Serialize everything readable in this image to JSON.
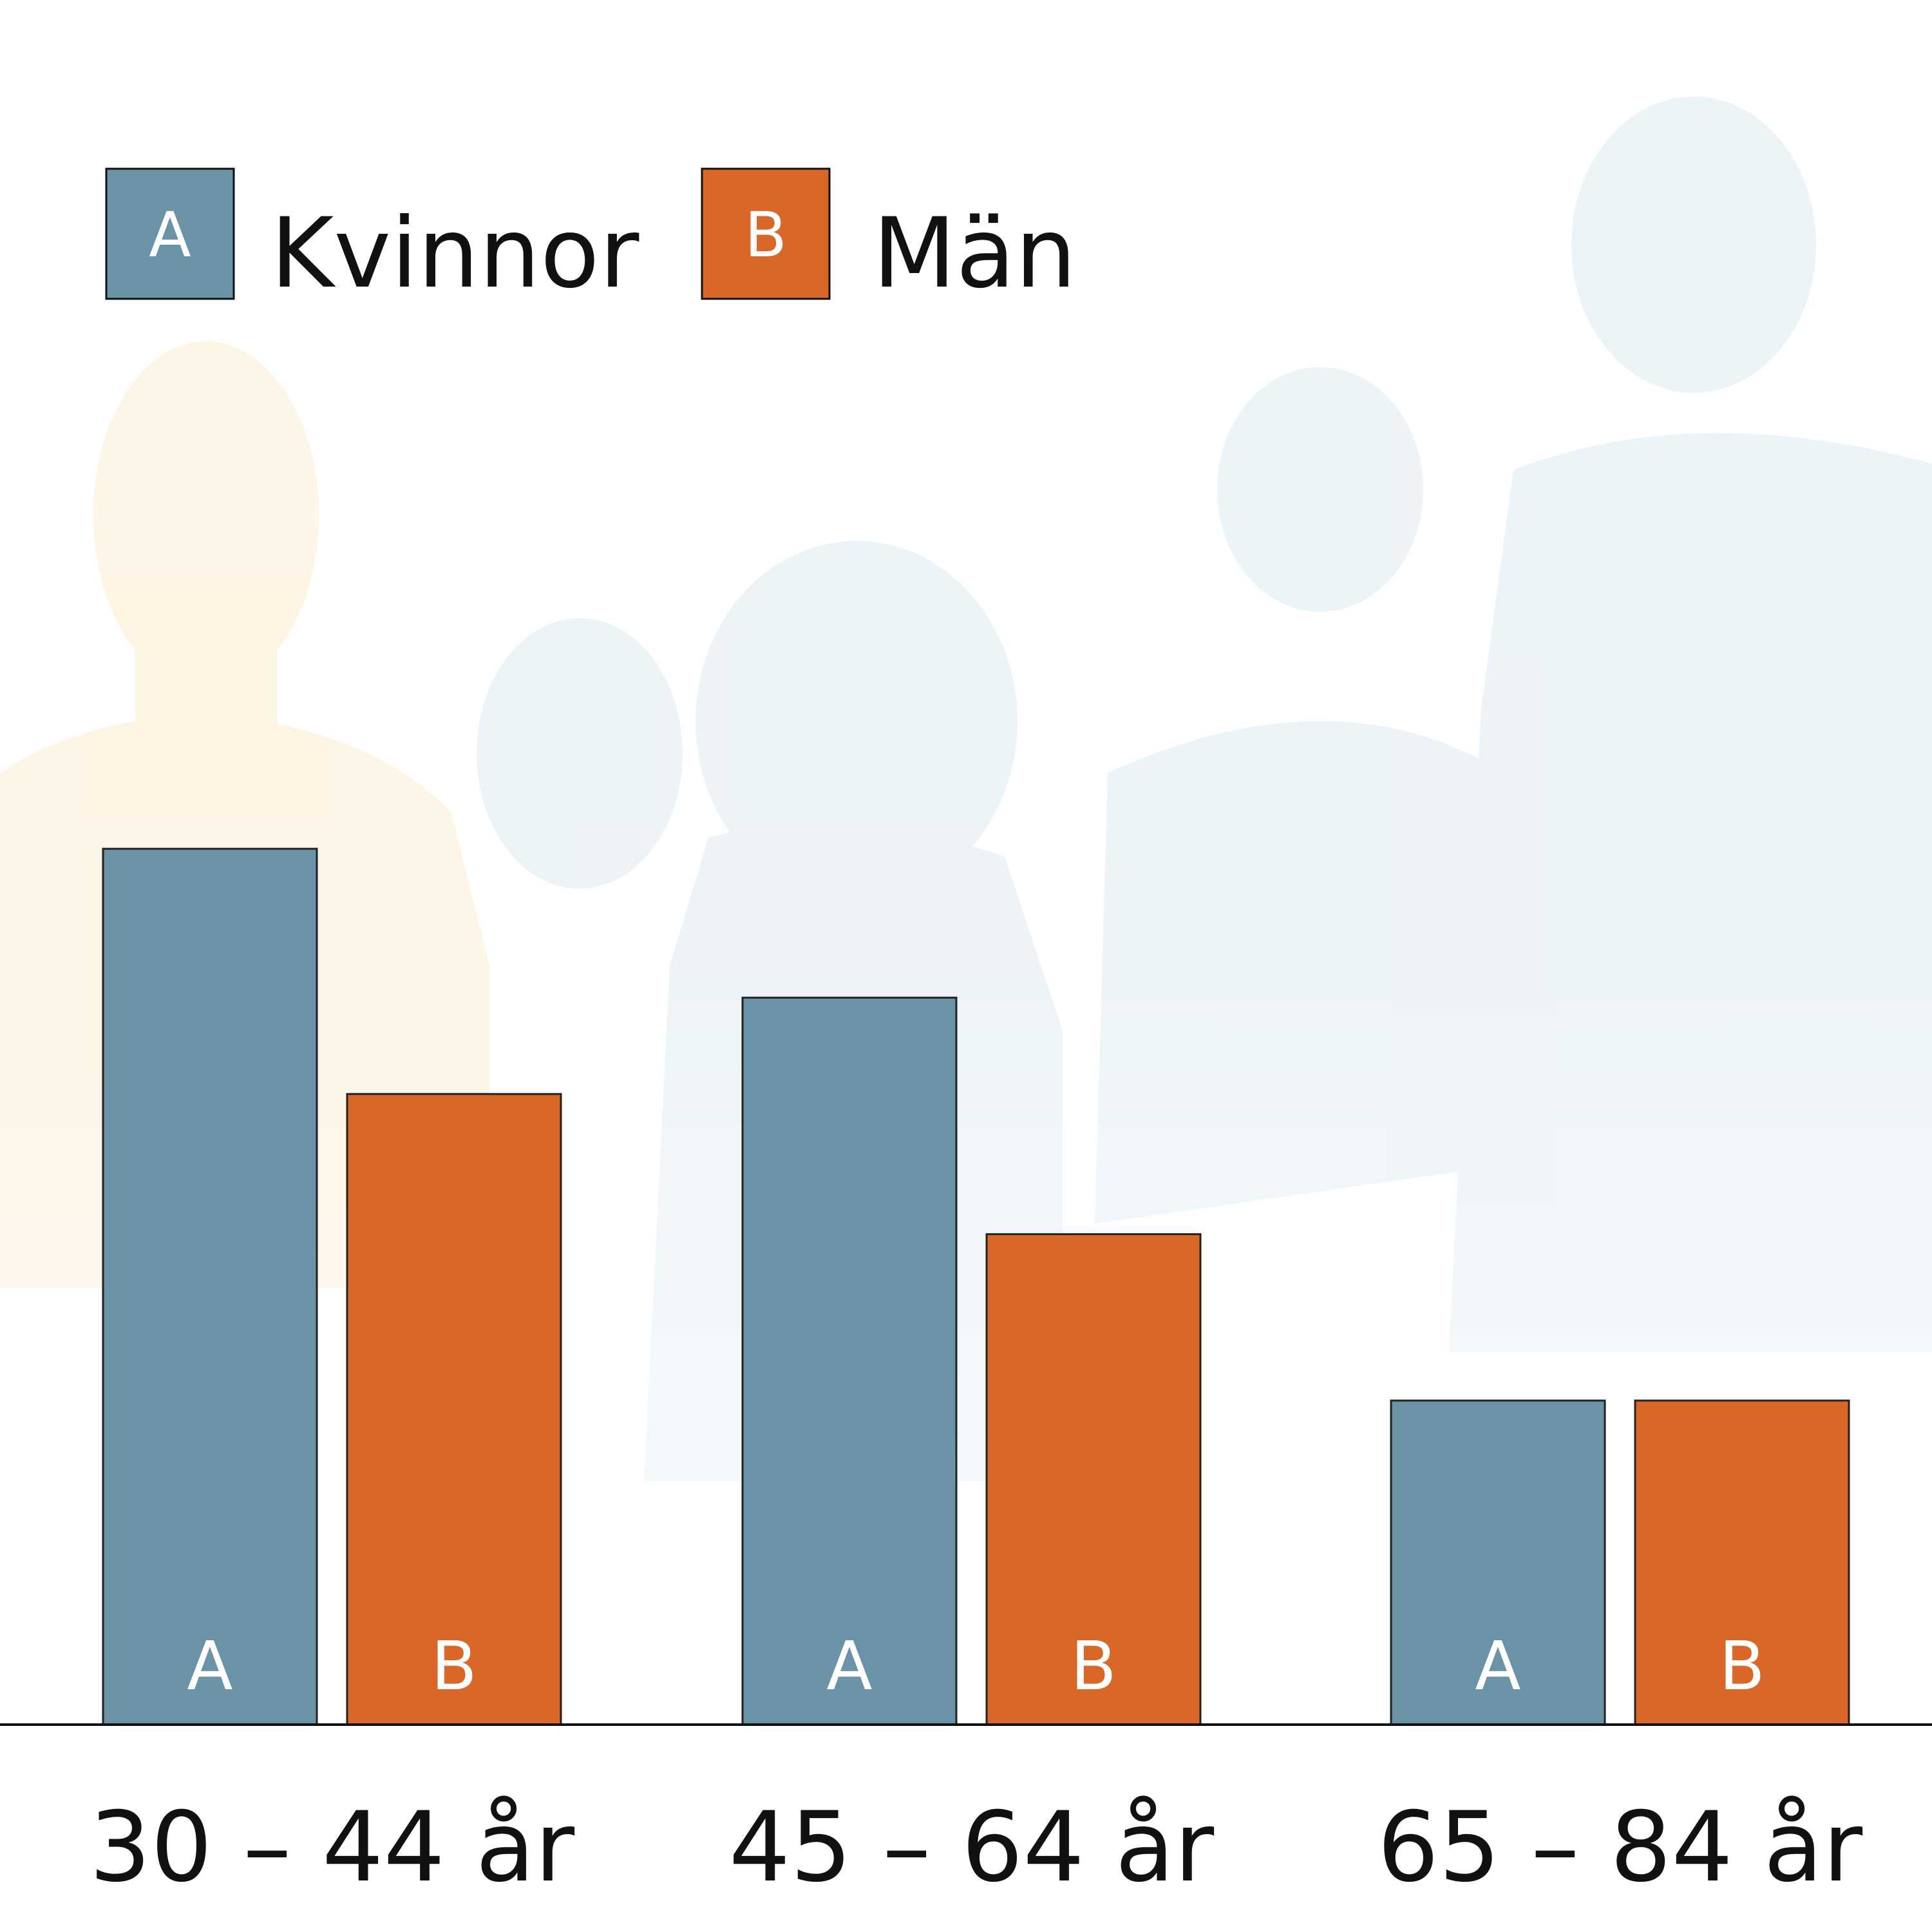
{
  "colors": {
    "kvinnor": "#6a93a8",
    "man": "#d96727",
    "background_tint_warm": "#fdf3df",
    "background_tint_cool": "#e4eef4",
    "axis": "#111111"
  },
  "chart_data": {
    "type": "bar",
    "title": "",
    "xlabel": "",
    "ylabel": "",
    "categories": [
      "30 – 44 år",
      "45 – 64 år",
      "65 – 84 år"
    ],
    "series": [
      {
        "name": "Kvinnor",
        "key": "A",
        "values": [
          100,
          83,
          37
        ]
      },
      {
        "name": "Män",
        "key": "B",
        "values": [
          72,
          56,
          37
        ]
      }
    ],
    "ylim": [
      0,
      100
    ],
    "grid": false,
    "y_axis_shown": false,
    "legend_position": "top-left"
  }
}
